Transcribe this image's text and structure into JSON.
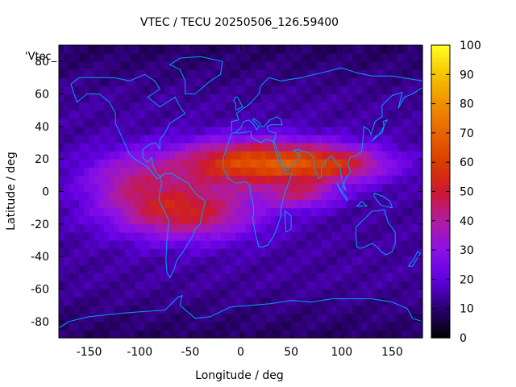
{
  "chart_data": {
    "type": "heatmap",
    "title": "VTEC / TECU 20250506_126.59400",
    "xlabel": "Longitude / deg",
    "ylabel": "Latitude / deg",
    "series_key": "'Vtec_",
    "xlim": [
      -180,
      180
    ],
    "ylim": [
      -90,
      90
    ],
    "xticks": [
      -150,
      -100,
      -50,
      0,
      50,
      100,
      150
    ],
    "yticks": [
      -80,
      -60,
      -40,
      -20,
      0,
      20,
      40,
      60,
      80
    ],
    "colorbar": {
      "min": 0,
      "max": 100,
      "ticks": [
        0,
        10,
        20,
        30,
        40,
        50,
        60,
        70,
        80,
        90,
        100
      ],
      "palette": "black-purple-red-orange-yellow",
      "stops": [
        {
          "v": 0,
          "color": "#000000"
        },
        {
          "v": 10,
          "color": "#2a006e"
        },
        {
          "v": 20,
          "color": "#6000e0"
        },
        {
          "v": 30,
          "color": "#8a10e8"
        },
        {
          "v": 40,
          "color": "#b01ca0"
        },
        {
          "v": 50,
          "color": "#cc1830"
        },
        {
          "v": 60,
          "color": "#d83c00"
        },
        {
          "v": 70,
          "color": "#e76400"
        },
        {
          "v": 80,
          "color": "#f08e00"
        },
        {
          "v": 90,
          "color": "#f6c200"
        },
        {
          "v": 100,
          "color": "#ffff20"
        }
      ]
    },
    "coastline_color": "#00a0ff",
    "grid": false,
    "field_approx": {
      "base_vtec": 14,
      "crests": [
        {
          "lon": 10,
          "lat": 18,
          "peak": 48,
          "sigma_lon": 55,
          "sigma_lat": 10
        },
        {
          "lon": -55,
          "lat": -12,
          "peak": 38,
          "sigma_lon": 50,
          "sigma_lat": 12
        },
        {
          "lon": 95,
          "lat": 17,
          "peak": 30,
          "sigma_lon": 40,
          "sigma_lat": 8
        },
        {
          "lon": 60,
          "lat": -2,
          "peak": 22,
          "sigma_lon": 25,
          "sigma_lat": 6
        },
        {
          "lon": -110,
          "lat": 8,
          "peak": 20,
          "sigma_lon": 35,
          "sigma_lat": 12
        }
      ]
    }
  }
}
